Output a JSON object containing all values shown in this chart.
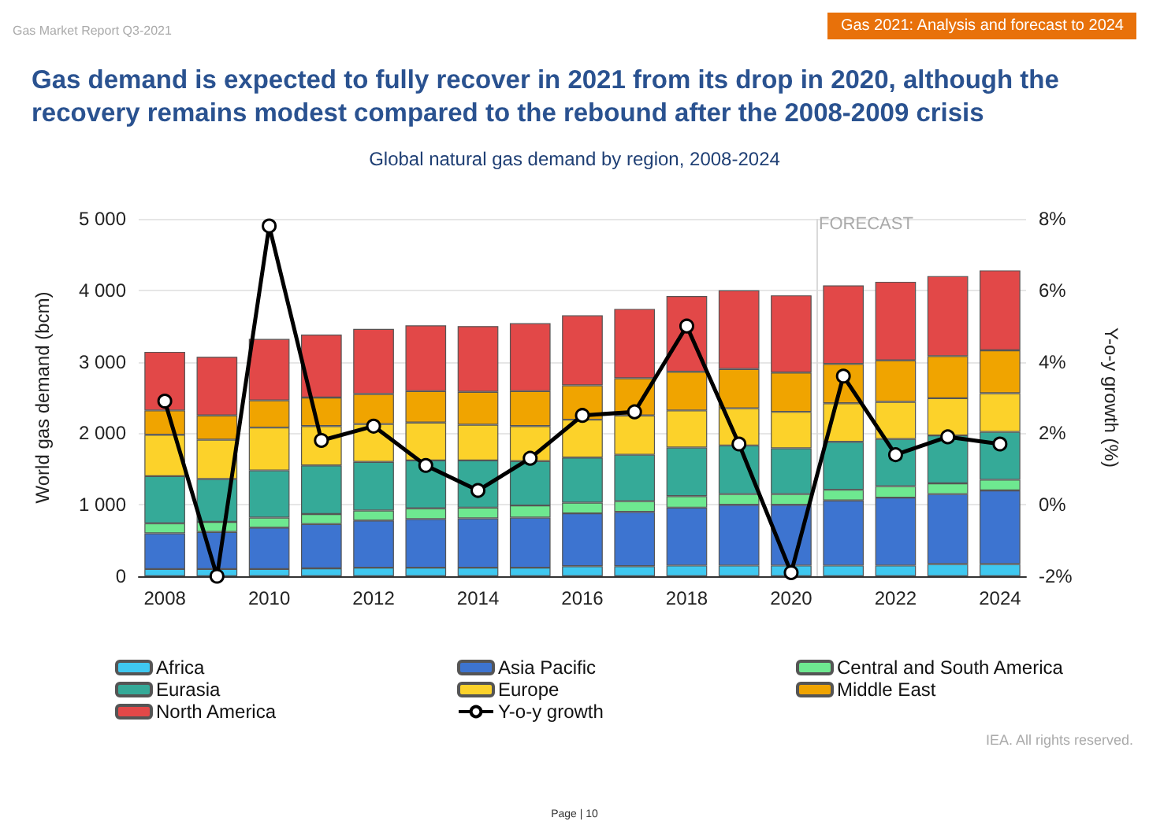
{
  "chart_data": {
    "type": "bar",
    "stacked": true,
    "title": "Gas demand is expected to fully recover in 2021 from its drop in 2020, although the recovery remains modest compared to the rebound after the 2008-2009 crisis",
    "subtitle": "Global natural gas demand by region, 2008-2024",
    "ylabel": "World gas demand (bcm)",
    "y2label": "Y-o-y growth (%)",
    "annotations": [
      "Gas Market Report Q3-2021",
      "Gas 2021: Analysis and forecast to 2024",
      "IEA. All rights reserved.",
      "Page | 10"
    ],
    "x": [
      2008,
      2009,
      2010,
      2011,
      2012,
      2013,
      2014,
      2015,
      2016,
      2017,
      2018,
      2019,
      2020,
      2021,
      2022,
      2023,
      2024
    ],
    "xlim": [
      2007.5,
      2024.5
    ],
    "xticks": [
      2008,
      2010,
      2012,
      2014,
      2016,
      2018,
      2020,
      2022,
      2024
    ],
    "ylim": [
      0,
      5000
    ],
    "yticks": [
      0,
      {
        "value": 1000,
        "label": "1 000"
      },
      {
        "value": 2000,
        "label": "2 000"
      },
      {
        "value": 3000,
        "label": "3 000"
      },
      {
        "value": 4000,
        "label": "4 000"
      },
      {
        "value": 5000,
        "label": "5 000"
      }
    ],
    "y2lim": [
      -2,
      8
    ],
    "y2ticks": [
      {
        "value": -2,
        "label": "-2%"
      },
      {
        "value": 0,
        "label": "0%"
      },
      {
        "value": 2,
        "label": "2%"
      },
      {
        "value": 4,
        "label": "4%"
      },
      {
        "value": 6,
        "label": "6%"
      },
      {
        "value": 8,
        "label": "8%"
      }
    ],
    "grid": "y",
    "legend": "bottom",
    "ref_lines": [
      {
        "axis": "x",
        "value": 2020.5,
        "label": "FORECAST",
        "color": "#d9d9d9"
      }
    ],
    "series": [
      {
        "name": "Africa",
        "color": "#3fc8f0",
        "values": [
          100,
          100,
          100,
          110,
          120,
          120,
          120,
          120,
          140,
          140,
          150,
          150,
          150,
          150,
          150,
          170,
          170
        ]
      },
      {
        "name": "Asia Pacific",
        "color": "#3d74d0",
        "values": [
          500,
          520,
          580,
          620,
          660,
          680,
          690,
          700,
          740,
          760,
          810,
          850,
          850,
          910,
          950,
          980,
          1030
        ]
      },
      {
        "name": "Central and South America",
        "color": "#6ee890",
        "values": [
          140,
          140,
          140,
          140,
          140,
          150,
          150,
          170,
          150,
          150,
          160,
          150,
          150,
          150,
          160,
          150,
          150
        ]
      },
      {
        "name": "Eurasia",
        "color": "#35aa98",
        "values": [
          660,
          600,
          660,
          680,
          680,
          670,
          660,
          620,
          630,
          650,
          680,
          680,
          640,
          670,
          660,
          670,
          670
        ]
      },
      {
        "name": "Europe",
        "color": "#fcd22a",
        "values": [
          580,
          550,
          600,
          550,
          530,
          530,
          500,
          490,
          530,
          550,
          520,
          520,
          510,
          540,
          520,
          520,
          540
        ]
      },
      {
        "name": "Middle East",
        "color": "#f0a400",
        "values": [
          340,
          340,
          380,
          400,
          420,
          440,
          460,
          490,
          480,
          520,
          540,
          550,
          550,
          550,
          580,
          590,
          600
        ]
      },
      {
        "name": "North America",
        "color": "#e24848",
        "values": [
          820,
          820,
          860,
          880,
          910,
          920,
          920,
          950,
          980,
          970,
          1060,
          1100,
          1080,
          1100,
          1100,
          1120,
          1120
        ]
      },
      {
        "name": "Y-o-y growth",
        "type": "line",
        "axis": "y2",
        "color": "#000000",
        "marker": "circle",
        "line_style": "solid",
        "values": [
          2.9,
          -2.0,
          7.8,
          1.8,
          2.2,
          1.1,
          0.4,
          1.3,
          2.5,
          2.6,
          5.0,
          1.7,
          -1.9,
          3.6,
          1.4,
          1.9,
          1.7
        ]
      }
    ]
  }
}
